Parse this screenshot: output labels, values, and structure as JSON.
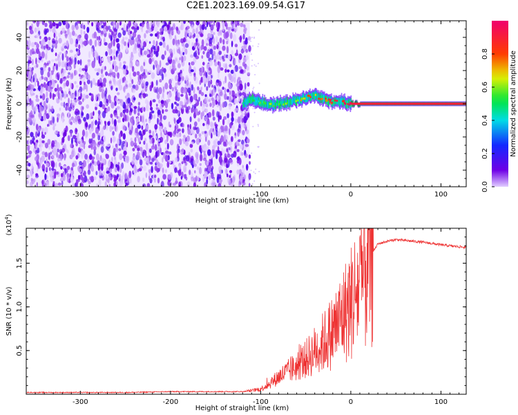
{
  "title": "C2E1.2023.169.09.54.G17",
  "chart_data": [
    {
      "type": "heatmap",
      "xlabel": "Height of straight line (km)",
      "ylabel": "Frequency (Hz)",
      "xlim": [
        -360,
        128
      ],
      "ylim": [
        -50,
        50
      ],
      "x_ticks": [
        -300,
        -200,
        -100,
        0,
        100
      ],
      "y_ticks": [
        -40,
        -20,
        0,
        20,
        40
      ],
      "noise_region": {
        "x_from": -360,
        "x_to": -112,
        "freq_from": -50,
        "freq_to": 50
      },
      "signal_trace": {
        "x": [
          -120,
          -110,
          -100,
          -90,
          -80,
          -70,
          -60,
          -50,
          -40,
          -30,
          -20,
          -10,
          0,
          20,
          50,
          80,
          128
        ],
        "freq": [
          0,
          3,
          1,
          -1,
          0,
          1,
          2,
          4,
          5,
          3,
          1,
          1,
          0,
          0,
          0,
          0,
          0
        ],
        "amplitude": [
          0.3,
          0.35,
          0.4,
          0.45,
          0.5,
          0.5,
          0.55,
          0.6,
          0.65,
          0.7,
          0.75,
          0.8,
          0.85,
          0.95,
          0.95,
          0.95,
          0.95
        ]
      },
      "colorbar": {
        "label": "Normalized spectral amplitude",
        "range": [
          0,
          1
        ],
        "ticks": [
          "0.0",
          "0.2",
          "0.4",
          "0.6",
          "0.8"
        ]
      }
    },
    {
      "type": "line",
      "xlabel": "Height of straight line (km)",
      "ylabel": "SNR (10 * v/v)",
      "scale_label_base": "(x10",
      "scale_label_exp": "4",
      "scale_label_end": ")",
      "xlim": [
        -360,
        128
      ],
      "ylim": [
        0,
        1.9
      ],
      "x_ticks": [
        -300,
        -200,
        -100,
        0,
        100
      ],
      "y_ticks": [
        "0.5",
        "1.0",
        "1.5"
      ],
      "series": [
        {
          "color": "#ee3333",
          "x": [
            -360,
            -300,
            -250,
            -200,
            -150,
            -120,
            -110,
            -100,
            -90,
            -80,
            -70,
            -60,
            -50,
            -40,
            -30,
            -20,
            -10,
            0,
            10,
            20,
            30,
            40,
            50,
            60,
            80,
            100,
            128
          ],
          "y": [
            0.02,
            0.02,
            0.02,
            0.03,
            0.03,
            0.03,
            0.04,
            0.06,
            0.12,
            0.2,
            0.26,
            0.32,
            0.4,
            0.5,
            0.6,
            0.72,
            0.88,
            1.05,
            1.25,
            1.55,
            1.72,
            1.75,
            1.77,
            1.76,
            1.74,
            1.71,
            1.68
          ]
        }
      ]
    }
  ]
}
